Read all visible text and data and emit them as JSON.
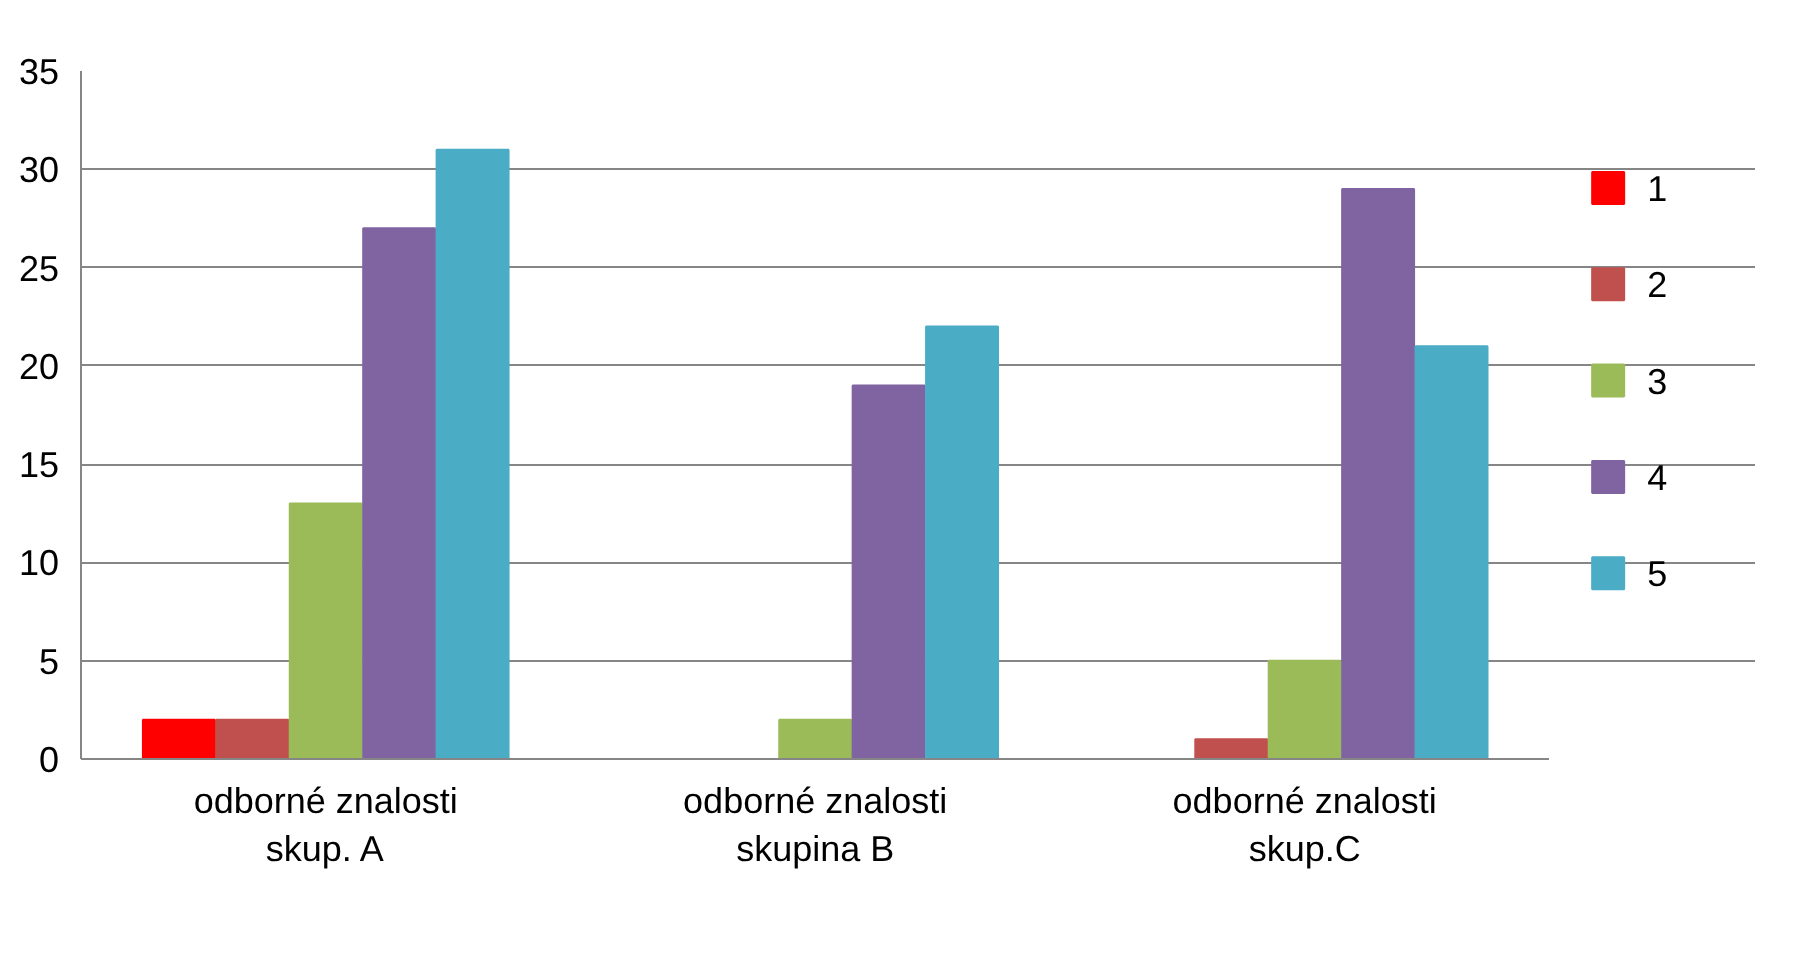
{
  "chart_data": {
    "type": "bar",
    "categories": [
      "odborné znalosti\nskup. A",
      "odborné znalosti\nskupina B",
      "odborné znalosti\nskup.C"
    ],
    "series": [
      {
        "name": "1",
        "color": "#ff0000",
        "values": [
          2,
          0,
          0
        ]
      },
      {
        "name": "2",
        "color": "#c0504d",
        "values": [
          2,
          0,
          1
        ]
      },
      {
        "name": "3",
        "color": "#9bbb59",
        "values": [
          13,
          2,
          5
        ]
      },
      {
        "name": "4",
        "color": "#8064a2",
        "values": [
          27,
          19,
          29
        ]
      },
      {
        "name": "5",
        "color": "#4bacc6",
        "values": [
          31,
          22,
          21
        ]
      }
    ],
    "ylim": [
      0,
      35
    ],
    "yticks": [
      0,
      5,
      10,
      15,
      20,
      25,
      30,
      35
    ],
    "grid": "y",
    "legend": "right"
  }
}
